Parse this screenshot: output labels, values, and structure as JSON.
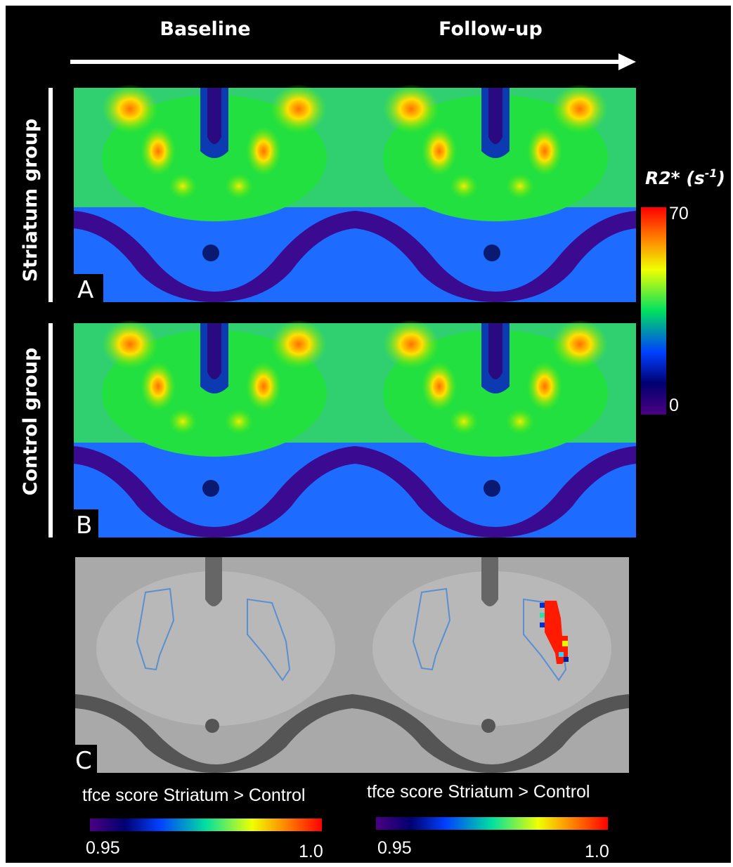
{
  "columns": {
    "baseline": "Baseline",
    "follow_up": "Follow-up"
  },
  "rows": {
    "striatum": "Striatum group",
    "control": "Control group"
  },
  "panels": {
    "a": "A",
    "b": "B",
    "c": "C"
  },
  "r2_colorbar": {
    "label_main": "R2* (s",
    "label_sup": "-1",
    "label_end": ")",
    "max": "70",
    "min": "0"
  },
  "tfce_colorbars": [
    {
      "label": "tfce score Striatum > Control",
      "min": "0.95",
      "max": "1.0"
    },
    {
      "label": "tfce score Striatum > Control",
      "min": "0.95",
      "max": "1.0"
    }
  ]
}
